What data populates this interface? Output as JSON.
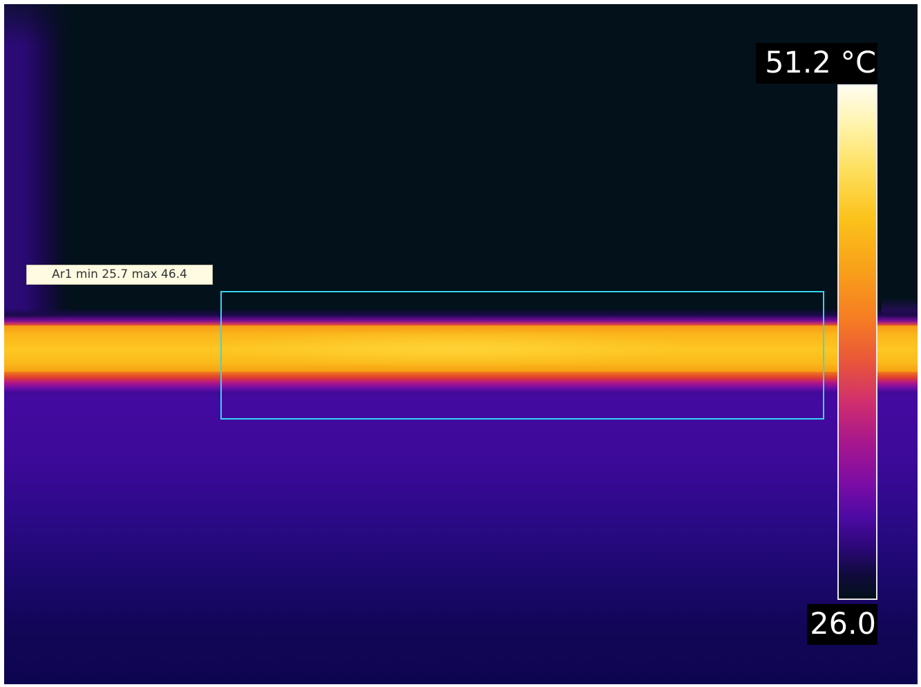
{
  "measurement": {
    "area_label": "Ar1 min 25.7 max 46.4",
    "area_name": "Ar1",
    "min": 25.7,
    "max": 46.4,
    "box_color": "#35d6f2"
  },
  "scale": {
    "max_label": "51.2 °C",
    "min_label": "26.0",
    "max_value": 51.2,
    "min_value": 26.0,
    "unit": "°C",
    "palette": "iron"
  },
  "colors": {
    "background": "#03111a",
    "pipe_hot": "#fdc722",
    "surface": "#3a0a85",
    "label_bg": "#fffbe2"
  }
}
